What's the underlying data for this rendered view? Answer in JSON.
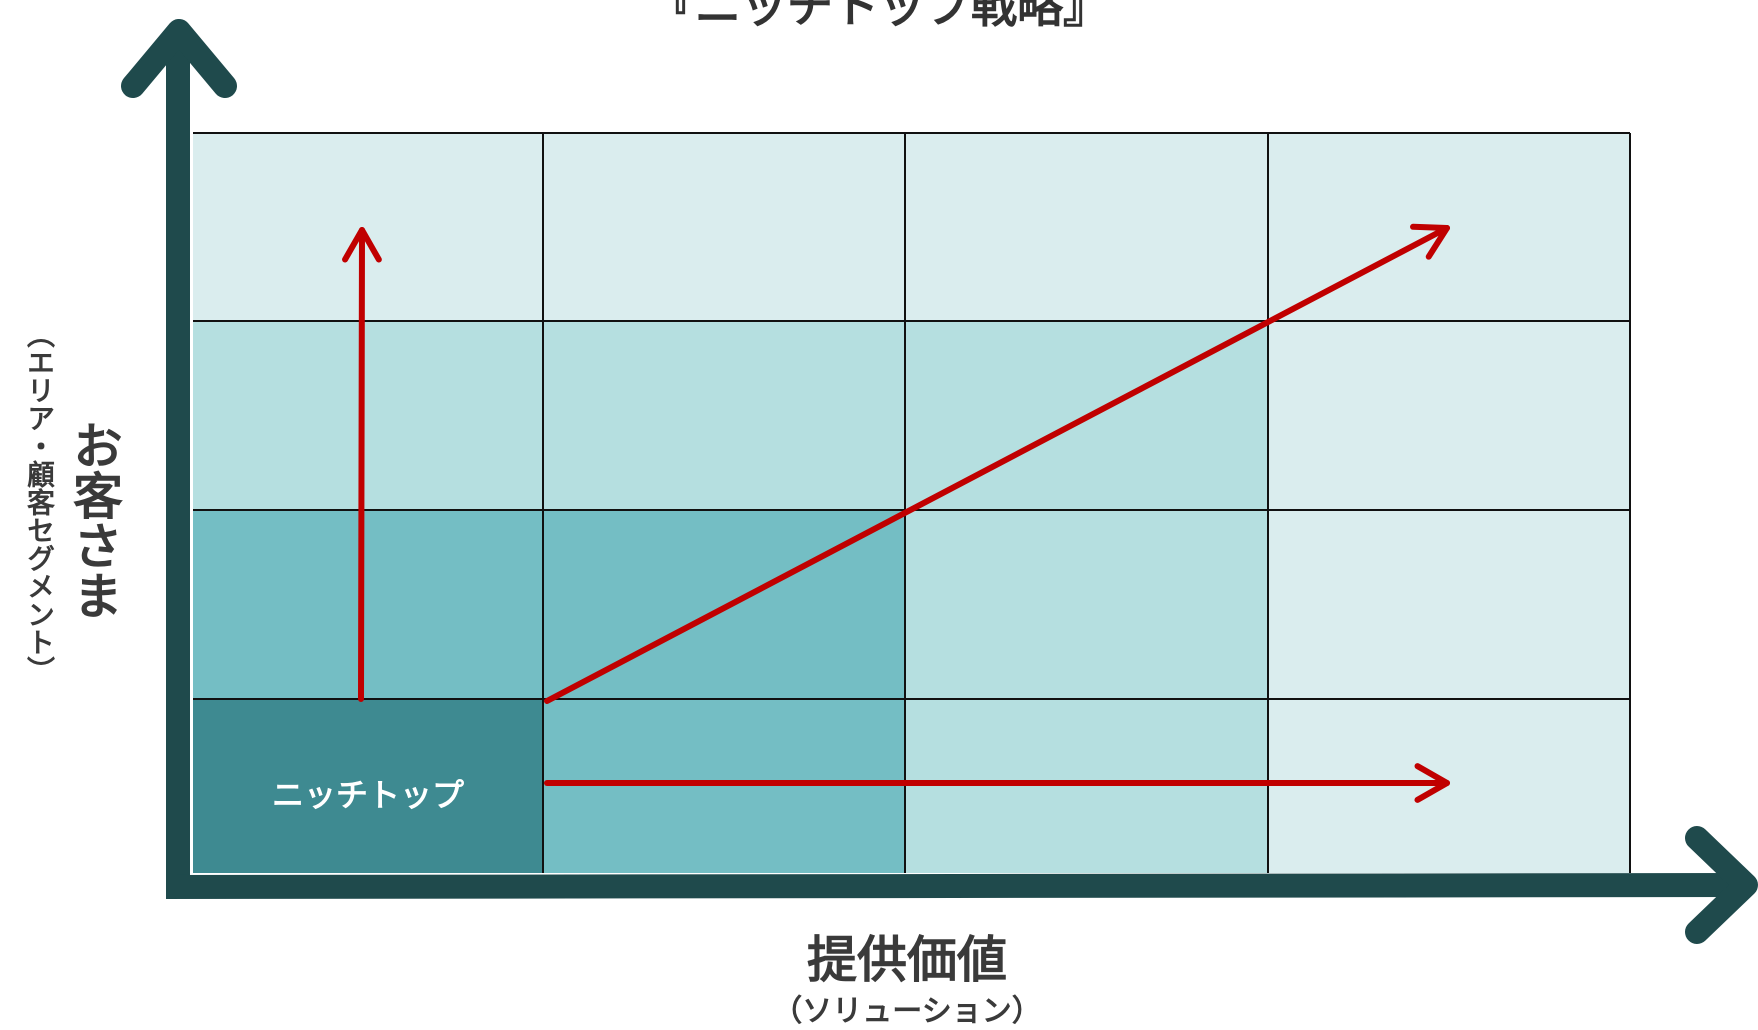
{
  "title": "『ニッチトップ戦略』",
  "x_axis": {
    "label": "提供価値",
    "sublabel": "（ソリューション）"
  },
  "y_axis": {
    "label": "お客さま",
    "sublabel": "（エリア・顧客セグメント）"
  },
  "niche_cell_label": "ニッチトップ",
  "colors": {
    "axis": "#1f4a4c",
    "grid_line": "#111111",
    "arrow": "#c00000",
    "level_0": "#3e8a91",
    "level_1": "#74bec4",
    "level_2": "#b5dfe0",
    "level_3": "#daedee",
    "niche_text": "#ffffff"
  },
  "grid": {
    "columns": 4,
    "rows": 4,
    "shade_levels_top_to_bottom": [
      [
        3,
        3,
        3,
        3
      ],
      [
        2,
        2,
        2,
        3
      ],
      [
        1,
        1,
        2,
        3
      ],
      [
        0,
        1,
        2,
        3
      ]
    ]
  }
}
